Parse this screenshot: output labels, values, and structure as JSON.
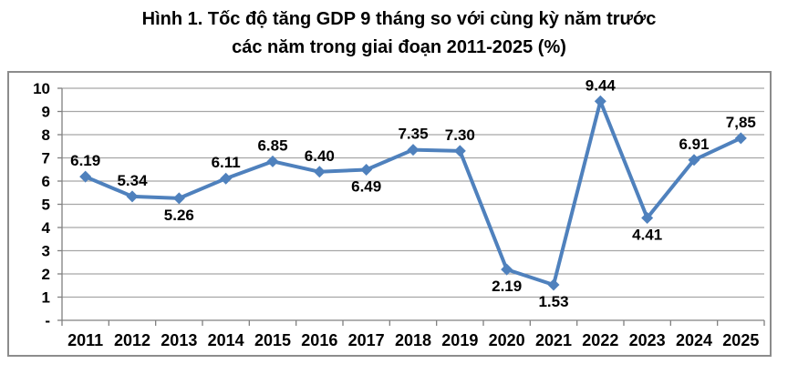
{
  "title": {
    "line1": "Hình 1. Tốc độ tăng GDP 9 tháng so với cùng kỳ năm trước",
    "line2": "các năm trong giai đoạn 2011-2025 (%)"
  },
  "chart_data": {
    "type": "line",
    "categories": [
      "2011",
      "2012",
      "2013",
      "2014",
      "2015",
      "2016",
      "2017",
      "2018",
      "2019",
      "2020",
      "2021",
      "2022",
      "2023",
      "2024",
      "2025"
    ],
    "values": [
      6.19,
      5.34,
      5.26,
      6.11,
      6.85,
      6.4,
      6.49,
      7.35,
      7.3,
      2.19,
      1.53,
      9.44,
      4.41,
      6.91,
      7.85
    ],
    "value_labels": [
      "6.19",
      "5.34",
      "5.26",
      "6.11",
      "6.85",
      "6.40",
      "6.49",
      "7.35",
      "7.30",
      "2.19",
      "1.53",
      "9.44",
      "4.41",
      "6.91",
      "7,85"
    ],
    "label_positions": [
      "above",
      "above",
      "below",
      "above",
      "above",
      "above",
      "below",
      "above",
      "above",
      "below",
      "below",
      "above",
      "below",
      "above",
      "above"
    ],
    "ylim": [
      0,
      10
    ],
    "ytick_labels": [
      "-",
      "1",
      "2",
      "3",
      "4",
      "5",
      "6",
      "7",
      "8",
      "9",
      "10"
    ],
    "grid": true,
    "legend_position": "none",
    "line_color": "#4F81BD",
    "marker": "diamond",
    "gridline_color": "#A6A6A6",
    "axis_color": "#808080",
    "text_color": "#000000"
  }
}
